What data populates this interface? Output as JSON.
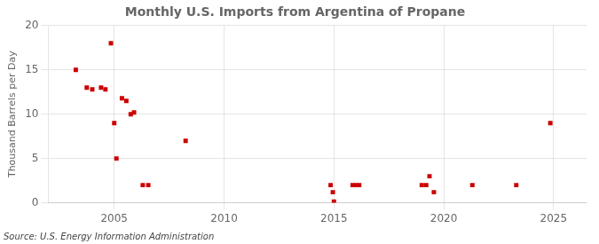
{
  "chart_data": {
    "type": "scatter",
    "title": "Monthly U.S. Imports from Argentina of Propane",
    "ylabel": "Thousand Barrels per Day",
    "annotations": [
      "Source: U.S. Energy Information Administration"
    ],
    "x": [
      2003.25,
      2003.75,
      2004.0,
      2004.4,
      2004.6,
      2004.85,
      2005.0,
      2005.1,
      2005.35,
      2005.55,
      2005.75,
      2005.9,
      2006.3,
      2006.55,
      2008.25,
      2014.85,
      2014.95,
      2015.0,
      2015.85,
      2016.0,
      2016.15,
      2019.0,
      2019.2,
      2019.35,
      2019.55,
      2021.3,
      2023.3,
      2024.85
    ],
    "values": [
      15.0,
      13.0,
      12.8,
      13.0,
      12.8,
      18.0,
      9.0,
      5.0,
      11.8,
      11.5,
      10.0,
      10.2,
      2.0,
      2.0,
      7.0,
      2.0,
      1.2,
      0.15,
      2.0,
      2.0,
      2.0,
      2.0,
      2.0,
      3.0,
      1.2,
      2.0,
      2.0,
      9.0
    ],
    "color": "#cc0000",
    "marker": "square",
    "xlim": [
      2002.0,
      2026.5
    ],
    "ylim": [
      0,
      20
    ],
    "xticks": [
      2005,
      2010,
      2015,
      2020,
      2025
    ],
    "yticks": [
      0,
      5,
      10,
      15,
      20
    ],
    "grid": true
  }
}
